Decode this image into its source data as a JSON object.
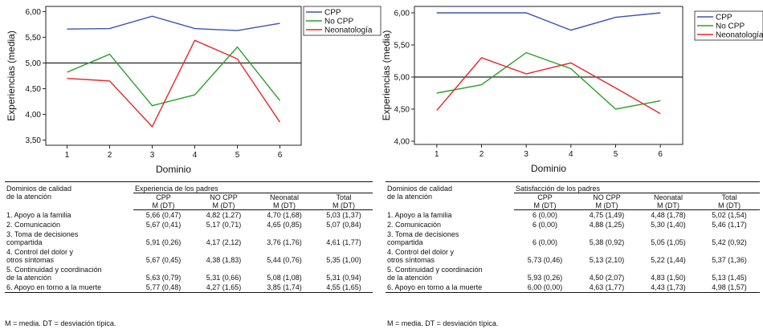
{
  "chart_data": [
    {
      "type": "line",
      "xlabel": "Dominio",
      "ylabel": "Experiencias (media)",
      "x": [
        1,
        2,
        3,
        4,
        5,
        6
      ],
      "ylim": [
        3.4,
        6.1
      ],
      "yticks": [
        "3,50",
        "4,00",
        "4,50",
        "5,00",
        "5,50",
        "6,00"
      ],
      "reference_line": 5.0,
      "legend_position": "top-right",
      "series": [
        {
          "name": "CPP",
          "color": "#3a55b4",
          "values": [
            5.66,
            5.67,
            5.91,
            5.67,
            5.63,
            5.77
          ]
        },
        {
          "name": "No CPP",
          "color": "#2aa02a",
          "values": [
            4.82,
            5.17,
            4.17,
            4.38,
            5.31,
            4.27
          ]
        },
        {
          "name": "Neonatología",
          "color": "#e8262a",
          "values": [
            4.7,
            4.65,
            3.76,
            5.44,
            5.08,
            3.85
          ]
        }
      ]
    },
    {
      "type": "line",
      "xlabel": "Dominio",
      "ylabel": "Experiencias (media)",
      "x": [
        1,
        2,
        3,
        4,
        5,
        6
      ],
      "ylim": [
        3.95,
        6.1
      ],
      "yticks": [
        "4,00",
        "4,50",
        "5,00",
        "5,50",
        "6,00"
      ],
      "reference_line": 5.0,
      "legend_position": "top-right",
      "series": [
        {
          "name": "CPP",
          "color": "#3a55b4",
          "values": [
            6.0,
            6.0,
            6.0,
            5.73,
            5.93,
            6.0
          ]
        },
        {
          "name": "No CPP",
          "color": "#2aa02a",
          "values": [
            4.75,
            4.88,
            5.38,
            5.13,
            4.5,
            4.63
          ]
        },
        {
          "name": "Neonatología",
          "color": "#e8262a",
          "values": [
            4.48,
            5.3,
            5.05,
            5.22,
            4.83,
            4.43
          ]
        }
      ]
    }
  ],
  "tables": [
    {
      "domain_header": [
        "Dominios de calidad",
        "de la atención"
      ],
      "group_title": "Experiencia de los padres",
      "columns": [
        [
          "CPP",
          "M (DT)"
        ],
        [
          "NO CPP",
          "M (DT)"
        ],
        [
          "Neonatal",
          "M (DT)"
        ],
        [
          "Total",
          "M (DT)"
        ]
      ],
      "rows": [
        {
          "label": [
            "1. Apoyo a la familia"
          ],
          "cells": [
            "5,66 (0,47)",
            "4,82 (1,27)",
            "4,70 (1,68)",
            "5,03 (1,37)"
          ]
        },
        {
          "label": [
            "2. Comunicación"
          ],
          "cells": [
            "5,67 (0,41)",
            "5,17 (0,71)",
            "4,65 (0,85)",
            "5,07 (0,84)"
          ]
        },
        {
          "label": [
            "3. Toma de decisiones",
            "compartida"
          ],
          "cells": [
            "5,91 (0,26)",
            "4,17 (2,12)",
            "3,76 (1,76)",
            "4,61 (1,77)"
          ]
        },
        {
          "label": [
            "4. Control del dolor y",
            "otros síntomas"
          ],
          "cells": [
            "5,67 (0,45)",
            "4,38 (1,83)",
            "5,44 (0,76)",
            "5,35 (1,00)"
          ]
        },
        {
          "label": [
            "5. Continuidad y coordinación",
            "de la atención"
          ],
          "cells": [
            "5,63 (0,79)",
            "5,31 (0,66)",
            "5,08 (1,08)",
            "5,31 (0,94)"
          ]
        },
        {
          "label": [
            "6. Apoyo en torno a la muerte"
          ],
          "cells": [
            "5,77 (0,48)",
            "4,27 (1,65)",
            "3,85 (1,74)",
            "4,55 (1,65)"
          ]
        }
      ],
      "note": "M = media. DT = desviación típica."
    },
    {
      "domain_header": [
        "Dominios de calidad",
        "de la atención"
      ],
      "group_title": "Satisfacción de los padres",
      "columns": [
        [
          "CPP",
          "M (DT)"
        ],
        [
          "NO CPP",
          "M (DT)"
        ],
        [
          "Neonatal",
          "M (DT)"
        ],
        [
          "Total",
          "M (DT)"
        ]
      ],
      "rows": [
        {
          "label": [
            "1. Apoyo a la familia"
          ],
          "cells": [
            "6 (0,00)",
            "4,75 (1,49)",
            "4,48 (1,78)",
            "5,02 (1,54)"
          ]
        },
        {
          "label": [
            "2. Comunicación"
          ],
          "cells": [
            "6 (0,00)",
            "4,88 (1,25)",
            "5,30 (1,40)",
            "5,46 (1,17)"
          ]
        },
        {
          "label": [
            "3. Toma de decisiones",
            "compartida"
          ],
          "cells": [
            "6 (0,00)",
            "5,38 (0,92)",
            "5,05 (1,05)",
            "5,42 (0,92)"
          ]
        },
        {
          "label": [
            "4. Control del dolor y",
            "otros síntomas"
          ],
          "cells": [
            "5,73 (0,46)",
            "5,13 (2,10)",
            "5,22 (1,44)",
            "5,37 (1,36)"
          ]
        },
        {
          "label": [
            "5. Continuidad y coordinación",
            "de la atención"
          ],
          "cells": [
            "5,93 (0,26)",
            "4,50 (2,07)",
            "4,83 (1,50)",
            "5,13 (1,45)"
          ]
        },
        {
          "label": [
            "6. Apoyo en torno a la muerte"
          ],
          "cells": [
            "6,00 (0,00)",
            "4,63 (1,77)",
            "4,43 (1,73)",
            "4,98 (1,57)"
          ]
        }
      ],
      "note": "M = media. DT = desviación típica."
    }
  ]
}
